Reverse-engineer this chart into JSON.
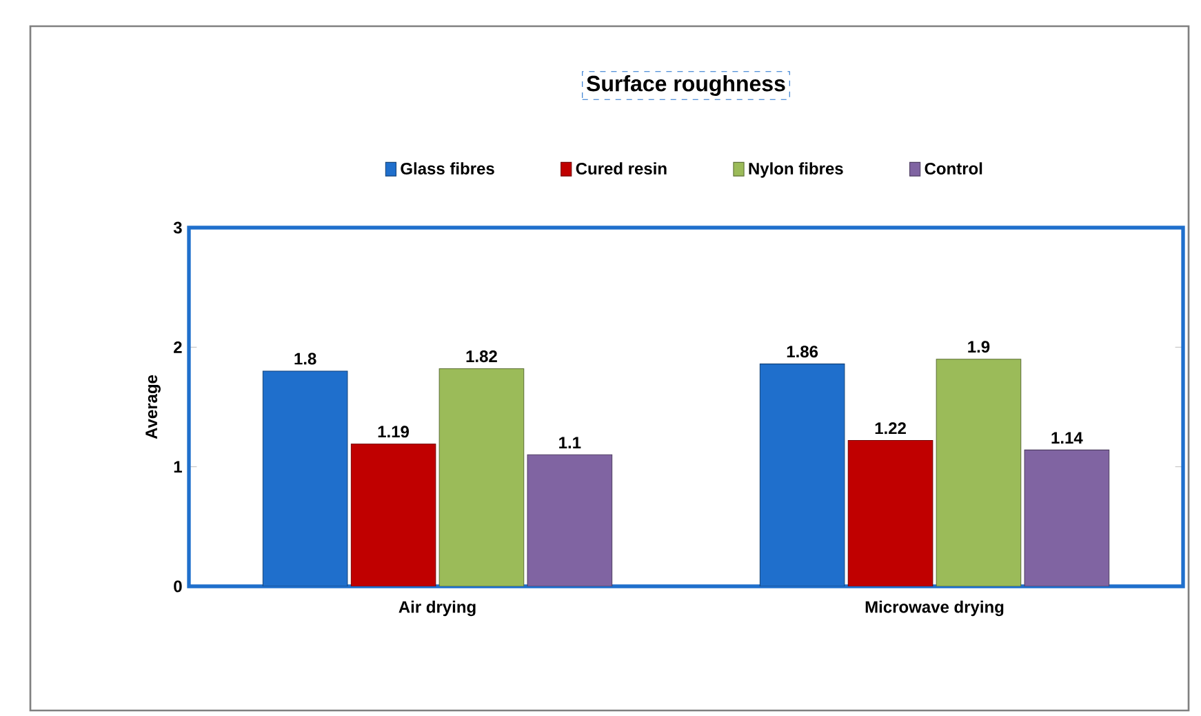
{
  "chart_data": {
    "type": "bar",
    "title": "Surface roughness",
    "ylabel": "Average",
    "categories": [
      "Air drying",
      "Microwave drying"
    ],
    "series": [
      {
        "name": "Glass fibres",
        "color": "#1f6fcc",
        "values": [
          1.8,
          1.86
        ]
      },
      {
        "name": "Cured resin",
        "color": "#c00000",
        "values": [
          1.19,
          1.22
        ]
      },
      {
        "name": "Nylon fibres",
        "color": "#9bbb59",
        "values": [
          1.82,
          1.9
        ]
      },
      {
        "name": "Control",
        "color": "#8064a2",
        "values": [
          1.1,
          1.14
        ]
      }
    ],
    "ylim": [
      0,
      3
    ],
    "yticks": [
      0,
      1,
      2,
      3
    ],
    "data_labels": true,
    "legend": "top",
    "grid": false
  }
}
